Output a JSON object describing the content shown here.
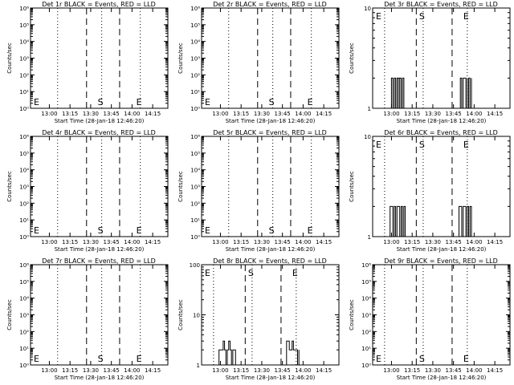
{
  "panels": [
    {
      "title": "Det 1r BLACK = Events, RED = LLD",
      "ylabel": "Counts/sec",
      "xlabel": "Start Time (28-Jan-18 12:46:20)",
      "yscale": "log",
      "yticks": [
        "10⁰",
        "10¹",
        "10²",
        "10³",
        "10⁴",
        "10⁵",
        "10⁶"
      ],
      "ytick_exp": [
        0,
        1,
        2,
        3,
        4,
        5,
        6
      ],
      "xticks": [
        "13:00",
        "13:15",
        "13:30",
        "13:45",
        "14:00",
        "14:15"
      ],
      "markers": [
        "E",
        "S",
        "E"
      ],
      "marker_row": "bottom",
      "has_data": false
    },
    {
      "title": "Det 2r BLACK = Events, RED = LLD",
      "ylabel": "Counts/sec",
      "xlabel": "Start Time (28-Jan-18 12:46:20)",
      "yscale": "log",
      "yticks": [
        "10⁰",
        "10¹",
        "10²",
        "10³",
        "10⁴",
        "10⁵",
        "10⁶"
      ],
      "ytick_exp": [
        0,
        1,
        2,
        3,
        4,
        5,
        6
      ],
      "xticks": [
        "13:00",
        "13:15",
        "13:30",
        "13:45",
        "14:00",
        "14:15"
      ],
      "markers": [
        "E",
        "S",
        "E"
      ],
      "marker_row": "bottom",
      "has_data": false
    },
    {
      "title": "Det 3r BLACK = Events, RED = LLD",
      "ylabel": "Counts/sec",
      "xlabel": "Start Time (28-Jan-18 12:46:20)",
      "yscale": "log",
      "yticks": [
        "1",
        "10"
      ],
      "ytick_exp": [
        0,
        1
      ],
      "xticks": [
        "13:00",
        "13:15",
        "13:30",
        "13:45",
        "14:00",
        "14:15"
      ],
      "markers": [
        "E",
        "S",
        "E"
      ],
      "marker_row": "top",
      "has_data": true
    },
    {
      "title": "Det 4r BLACK = Events, RED = LLD",
      "ylabel": "Counts/sec",
      "xlabel": "Start Time (28-Jan-18 12:46:20)",
      "yscale": "log",
      "yticks": [
        "10⁰",
        "10¹",
        "10²",
        "10³",
        "10⁴",
        "10⁵",
        "10⁶"
      ],
      "ytick_exp": [
        0,
        1,
        2,
        3,
        4,
        5,
        6
      ],
      "xticks": [
        "13:00",
        "13:15",
        "13:30",
        "13:45",
        "14:00",
        "14:15"
      ],
      "markers": [
        "E",
        "S",
        "E"
      ],
      "marker_row": "bottom",
      "has_data": false
    },
    {
      "title": "Det 5r BLACK = Events, RED = LLD",
      "ylabel": "Counts/sec",
      "xlabel": "Start Time (28-Jan-18 12:46:20)",
      "yscale": "log",
      "yticks": [
        "10⁰",
        "10¹",
        "10²",
        "10³",
        "10⁴",
        "10⁵",
        "10⁶"
      ],
      "ytick_exp": [
        0,
        1,
        2,
        3,
        4,
        5,
        6
      ],
      "xticks": [
        "13:00",
        "13:15",
        "13:30",
        "13:45",
        "14:00",
        "14:15"
      ],
      "markers": [
        "E",
        "S",
        "E"
      ],
      "marker_row": "bottom",
      "has_data": false
    },
    {
      "title": "Det 6r BLACK = Events, RED = LLD",
      "ylabel": "Counts/sec",
      "xlabel": "Start Time (28-Jan-18 12:46:20)",
      "yscale": "log",
      "yticks": [
        "1",
        "10"
      ],
      "ytick_exp": [
        0,
        1
      ],
      "xticks": [
        "13:00",
        "13:15",
        "13:30",
        "13:45",
        "14:00",
        "14:15"
      ],
      "markers": [
        "E",
        "S",
        "E"
      ],
      "marker_row": "top",
      "has_data": true
    },
    {
      "title": "Det 7r BLACK = Events, RED = LLD",
      "ylabel": "Counts/sec",
      "xlabel": "Start Time (28-Jan-18 12:46:20)",
      "yscale": "log",
      "yticks": [
        "10⁰",
        "10¹",
        "10²",
        "10³",
        "10⁴",
        "10⁵",
        "10⁶"
      ],
      "ytick_exp": [
        0,
        1,
        2,
        3,
        4,
        5,
        6
      ],
      "xticks": [
        "13:00",
        "13:15",
        "13:30",
        "13:45",
        "14:00",
        "14:15"
      ],
      "markers": [
        "E",
        "S",
        "E"
      ],
      "marker_row": "bottom",
      "has_data": false
    },
    {
      "title": "Det 8r BLACK = Events, RED = LLD",
      "ylabel": "Counts/sec",
      "xlabel": "Start Time (28-Jan-18 12:46:20)",
      "yscale": "log",
      "yticks": [
        "1",
        "10",
        "100"
      ],
      "ytick_exp": [
        0,
        1,
        2
      ],
      "xticks": [
        "13:00",
        "13:15",
        "13:30",
        "13:45",
        "14:00",
        "14:15"
      ],
      "markers": [
        "E",
        "S",
        "E"
      ],
      "marker_row": "top",
      "has_data": true
    },
    {
      "title": "Det 9r BLACK = Events, RED = LLD",
      "ylabel": "Counts/sec",
      "xlabel": "Start Time (28-Jan-18 12:46:20)",
      "yscale": "log",
      "yticks": [
        "10⁰",
        "10¹",
        "10²",
        "10³",
        "10⁴",
        "10⁵",
        "10⁶"
      ],
      "ytick_exp": [
        0,
        1,
        2,
        3,
        4,
        5,
        6
      ],
      "xticks": [
        "13:00",
        "13:15",
        "13:30",
        "13:45",
        "14:00",
        "14:15"
      ],
      "markers": [
        "E",
        "S",
        "E"
      ],
      "marker_row": "bottom",
      "has_data": false
    }
  ],
  "chart_data": [
    {
      "type": "line",
      "title": "Det 1r BLACK = Events, RED = LLD",
      "xlabel": "Start Time (28-Jan-18 12:46:20)",
      "ylabel": "Counts/sec",
      "yscale": "log",
      "ylim": [
        1,
        1000000
      ],
      "xlim": [
        "12:46:20",
        "14:26:00"
      ],
      "vlines": {
        "dotted": [
          "13:06",
          "13:38",
          "14:06"
        ],
        "dashed": [
          "13:27",
          "13:51"
        ]
      },
      "series": []
    },
    {
      "type": "line",
      "title": "Det 2r BLACK = Events, RED = LLD",
      "xlabel": "Start Time (28-Jan-18 12:46:20)",
      "ylabel": "Counts/sec",
      "yscale": "log",
      "ylim": [
        1,
        1000000
      ],
      "xlim": [
        "12:46:20",
        "14:26:00"
      ],
      "vlines": {
        "dotted": [
          "13:06",
          "13:38",
          "14:06"
        ],
        "dashed": [
          "13:27",
          "13:51"
        ]
      },
      "series": []
    },
    {
      "type": "line",
      "title": "Det 3r BLACK = Events, RED = LLD",
      "xlabel": "Start Time (28-Jan-18 12:46:20)",
      "ylabel": "Counts/sec",
      "yscale": "log",
      "ylim": [
        1,
        10
      ],
      "xlim": [
        "12:46:20",
        "14:26:00"
      ],
      "vlines": {
        "dotted": [
          "12:55",
          "13:23",
          "13:55"
        ],
        "dashed": [
          "13:18",
          "13:44"
        ]
      },
      "series": [
        {
          "x": [
            "13:00",
            "13:00",
            "13:01",
            "13:02",
            "13:03",
            "13:04",
            "13:05",
            "13:05",
            "13:06",
            "13:06",
            "13:07",
            "13:08",
            "13:09",
            "13:09",
            "13:50",
            "13:50",
            "13:51",
            "13:52",
            "13:53",
            "13:54",
            "13:55",
            "13:55",
            "13:56",
            "13:57",
            "13:58",
            "13:58"
          ],
          "y": [
            1,
            2,
            1,
            2,
            1,
            2,
            1,
            2,
            1,
            2,
            1,
            2,
            1,
            1,
            1,
            2,
            1,
            2,
            2,
            1,
            2,
            1,
            2,
            1,
            2,
            1
          ]
        }
      ]
    },
    {
      "type": "line",
      "title": "Det 4r BLACK = Events, RED = LLD",
      "xlabel": "Start Time (28-Jan-18 12:46:20)",
      "ylabel": "Counts/sec",
      "yscale": "log",
      "ylim": [
        1,
        1000000
      ],
      "xlim": [
        "12:46:20",
        "14:26:00"
      ],
      "vlines": {
        "dotted": [
          "13:06",
          "13:38",
          "14:06"
        ],
        "dashed": [
          "13:27",
          "13:51"
        ]
      },
      "series": []
    },
    {
      "type": "line",
      "title": "Det 5r BLACK = Events, RED = LLD",
      "xlabel": "Start Time (28-Jan-18 12:46:20)",
      "ylabel": "Counts/sec",
      "yscale": "log",
      "ylim": [
        1,
        1000000
      ],
      "xlim": [
        "12:46:20",
        "14:26:00"
      ],
      "vlines": {
        "dotted": [
          "13:06",
          "13:38",
          "14:06"
        ],
        "dashed": [
          "13:27",
          "13:51"
        ]
      },
      "series": []
    },
    {
      "type": "line",
      "title": "Det 6r BLACK = Events, RED = LLD",
      "xlabel": "Start Time (28-Jan-18 12:46:20)",
      "ylabel": "Counts/sec",
      "yscale": "log",
      "ylim": [
        1,
        10
      ],
      "xlim": [
        "12:46:20",
        "14:26:00"
      ],
      "vlines": {
        "dotted": [
          "12:55",
          "13:23",
          "13:55"
        ],
        "dashed": [
          "13:18",
          "13:44"
        ]
      },
      "series": [
        {
          "x": [
            "12:59",
            "12:59",
            "13:00",
            "13:01",
            "13:02",
            "13:03",
            "13:04",
            "13:05",
            "13:06",
            "13:07",
            "13:08",
            "13:09",
            "13:10",
            "13:10",
            "13:49",
            "13:49",
            "13:50",
            "13:51",
            "13:52",
            "13:53",
            "13:54",
            "13:55",
            "13:56",
            "13:57",
            "13:58",
            "13:58"
          ],
          "y": [
            1,
            2,
            2,
            1,
            2,
            1,
            2,
            2,
            1,
            2,
            1,
            2,
            1,
            1,
            1,
            2,
            2,
            1,
            2,
            2,
            1,
            2,
            1,
            2,
            1,
            1
          ]
        }
      ]
    },
    {
      "type": "line",
      "title": "Det 7r BLACK = Events, RED = LLD",
      "xlabel": "Start Time (28-Jan-18 12:46:20)",
      "ylabel": "Counts/sec",
      "yscale": "log",
      "ylim": [
        1,
        1000000
      ],
      "xlim": [
        "12:46:20",
        "14:26:00"
      ],
      "vlines": {
        "dotted": [
          "13:06",
          "13:38",
          "14:06"
        ],
        "dashed": [
          "13:27",
          "13:51"
        ]
      },
      "series": []
    },
    {
      "type": "line",
      "title": "Det 8r BLACK = Events, RED = LLD",
      "xlabel": "Start Time (28-Jan-18 12:46:20)",
      "ylabel": "Counts/sec",
      "yscale": "log",
      "ylim": [
        1,
        100
      ],
      "xlim": [
        "12:46:20",
        "14:26:00"
      ],
      "vlines": {
        "dotted": [
          "12:55",
          "13:23",
          "13:55"
        ],
        "dashed": [
          "13:18",
          "13:44"
        ]
      },
      "series": [
        {
          "x": [
            "12:59",
            "12:59",
            "13:01",
            "13:02",
            "13:03",
            "13:04",
            "13:05",
            "13:06",
            "13:07",
            "13:08",
            "13:09",
            "13:10",
            "13:11",
            "13:11",
            "13:48",
            "13:48",
            "13:50",
            "13:51",
            "13:52",
            "13:53",
            "13:54",
            "13:56",
            "13:57",
            "13:57"
          ],
          "y": [
            1,
            2,
            2,
            3,
            2,
            1,
            2,
            3,
            2,
            1,
            2,
            2,
            1,
            1,
            1,
            3,
            2,
            2,
            3,
            2,
            2,
            1,
            2,
            1
          ]
        }
      ]
    },
    {
      "type": "line",
      "title": "Det 9r BLACK = Events, RED = LLD",
      "xlabel": "Start Time (28-Jan-18 12:46:20)",
      "ylabel": "Counts/sec",
      "yscale": "log",
      "ylim": [
        1,
        1000000
      ],
      "xlim": [
        "12:46:20",
        "14:26:00"
      ],
      "vlines": {
        "dotted": [
          "12:55",
          "13:23",
          "13:55"
        ],
        "dashed": [
          "13:18",
          "13:44"
        ]
      },
      "series": []
    }
  ]
}
